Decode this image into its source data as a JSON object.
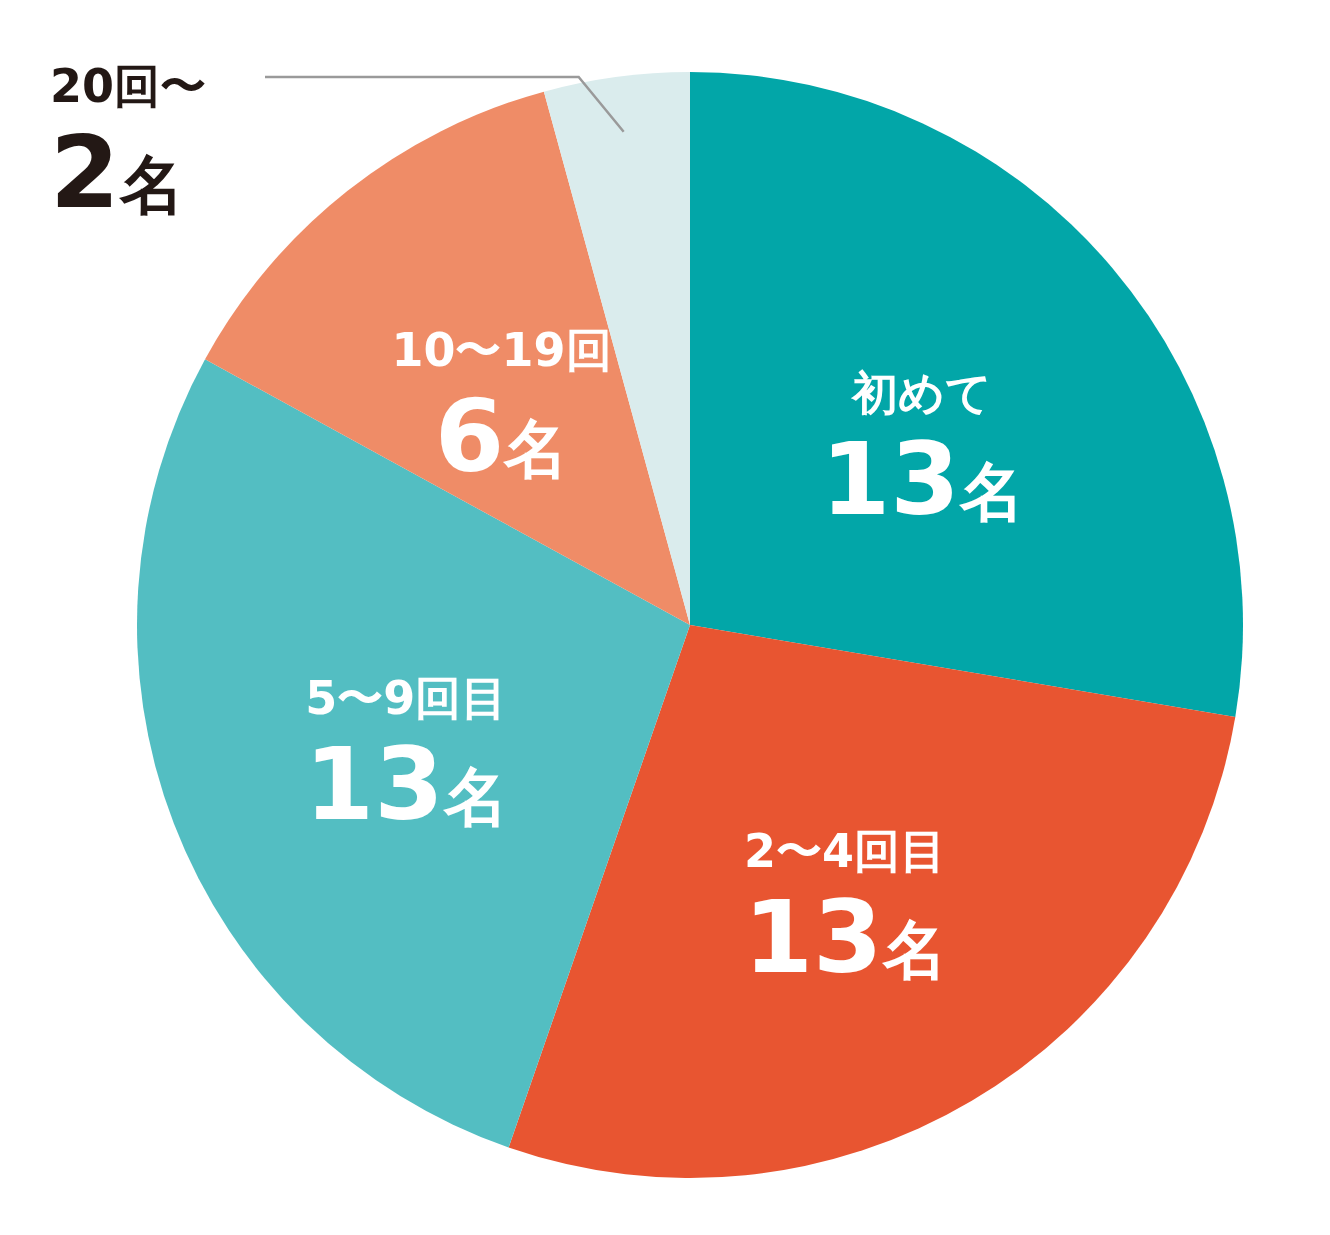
{
  "chart_data": {
    "type": "pie",
    "categories": [
      "初めて",
      "2〜4回目",
      "5〜9回目",
      "10〜19回",
      "20回〜"
    ],
    "values": [
      13,
      13,
      13,
      6,
      2
    ],
    "value_labels": [
      "13名",
      "13名",
      "13名",
      "6名",
      "2名"
    ],
    "colors": [
      "#02a6a8",
      "#e85531",
      "#53bec2",
      "#ef8c67",
      "#daeced"
    ]
  }
}
